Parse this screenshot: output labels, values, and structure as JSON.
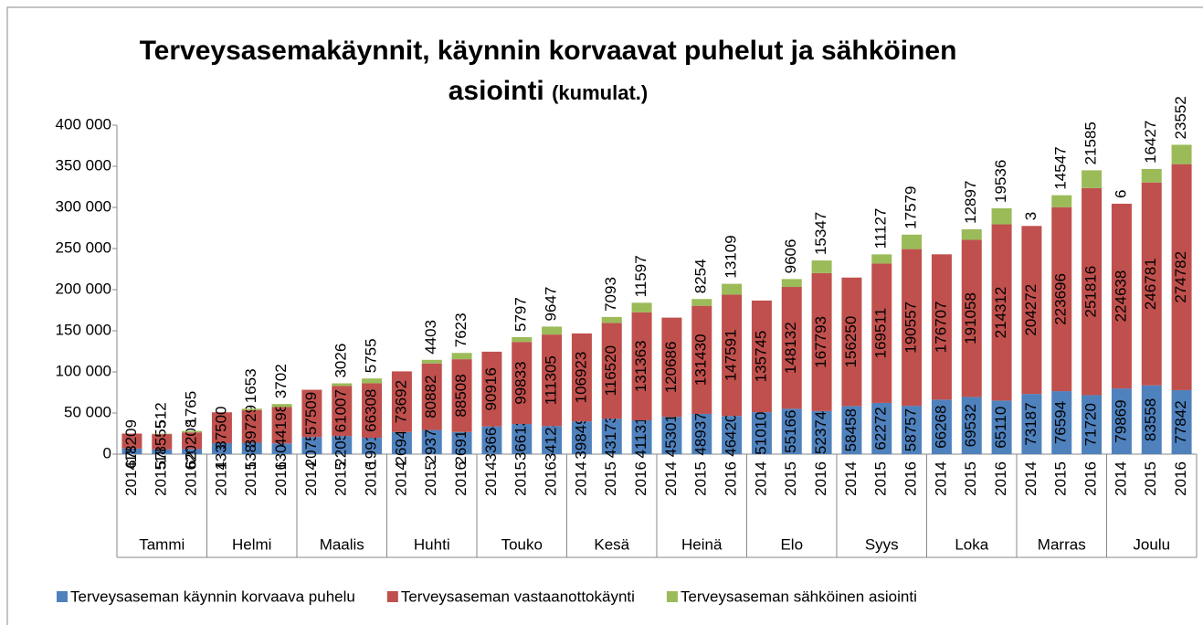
{
  "chart_data": {
    "type": "stacked_bar",
    "title": "Terveysasemakäynnit, käynnin korvaavat puhelut ja sähköinen asiointi",
    "subtitle": "(kumulat.)",
    "groups": [
      "Tammi",
      "Helmi",
      "Maalis",
      "Huhti",
      "Touko",
      "Kesä",
      "Heinä",
      "Elo",
      "Syys",
      "Loka",
      "Marras",
      "Joulu"
    ],
    "categories": [
      "2014",
      "2015",
      "2016",
      "2014",
      "2015",
      "2016",
      "2014",
      "2015",
      "2016",
      "2014",
      "2015",
      "2016",
      "2014",
      "2015",
      "2016",
      "2014",
      "2015",
      "2016",
      "2014",
      "2015",
      "2016",
      "2014",
      "2015",
      "2016",
      "2014",
      "2015",
      "2016",
      "2014",
      "2015",
      "2016",
      "2014",
      "2015",
      "2016",
      "2014",
      "2015",
      "2016"
    ],
    "series": [
      {
        "name": "Terveysaseman käynnin korvaava puhelu",
        "color": "#4f81bd",
        "values": [
          6791,
          5783,
          6210,
          13353,
          13897,
          13041,
          20759,
          22051,
          19916,
          26947,
          29378,
          26918,
          33664,
          36613,
          34123,
          39849,
          43173,
          41131,
          45301,
          48937,
          46420,
          51010,
          55166,
          52374,
          58458,
          62272,
          58757,
          66268,
          69532,
          65110,
          73187,
          76594,
          71720,
          79869,
          83558,
          77842
        ]
      },
      {
        "name": "Terveysaseman vastaanottokäynti",
        "color": "#c0504d",
        "values": [
          18209,
          18555,
          20208,
          37500,
          39729,
          44198,
          57509,
          61007,
          66308,
          73692,
          80882,
          88508,
          90916,
          99833,
          111305,
          106923,
          116520,
          131363,
          120686,
          131430,
          147591,
          135745,
          148132,
          167793,
          156250,
          169511,
          190557,
          176707,
          191058,
          214312,
          204272,
          223696,
          251816,
          224638,
          246781,
          274782
        ]
      },
      {
        "name": "Terveysaseman sähköinen asiointi",
        "color": "#9bbb59",
        "values": [
          null,
          512,
          1765,
          null,
          1653,
          3702,
          null,
          3026,
          5755,
          null,
          4403,
          7623,
          null,
          5797,
          9647,
          null,
          7093,
          11597,
          null,
          8254,
          13109,
          null,
          9606,
          15347,
          null,
          11127,
          17579,
          null,
          12897,
          19536,
          3,
          14547,
          21585,
          6,
          16427,
          23552
        ]
      }
    ],
    "ylim": [
      0,
      400000
    ],
    "yticks": [
      0,
      {
        "value": 50000,
        "label": "50 000"
      },
      {
        "value": 100000,
        "label": "100 000"
      },
      {
        "value": 150000,
        "label": "150 000"
      },
      {
        "value": 200000,
        "label": "200 000"
      },
      {
        "value": 250000,
        "label": "250 000"
      },
      {
        "value": 300000,
        "label": "300 000"
      },
      {
        "value": 350000,
        "label": "350 000"
      },
      {
        "value": 400000,
        "label": "400 000"
      }
    ],
    "grid": false,
    "legend": "bottom"
  }
}
